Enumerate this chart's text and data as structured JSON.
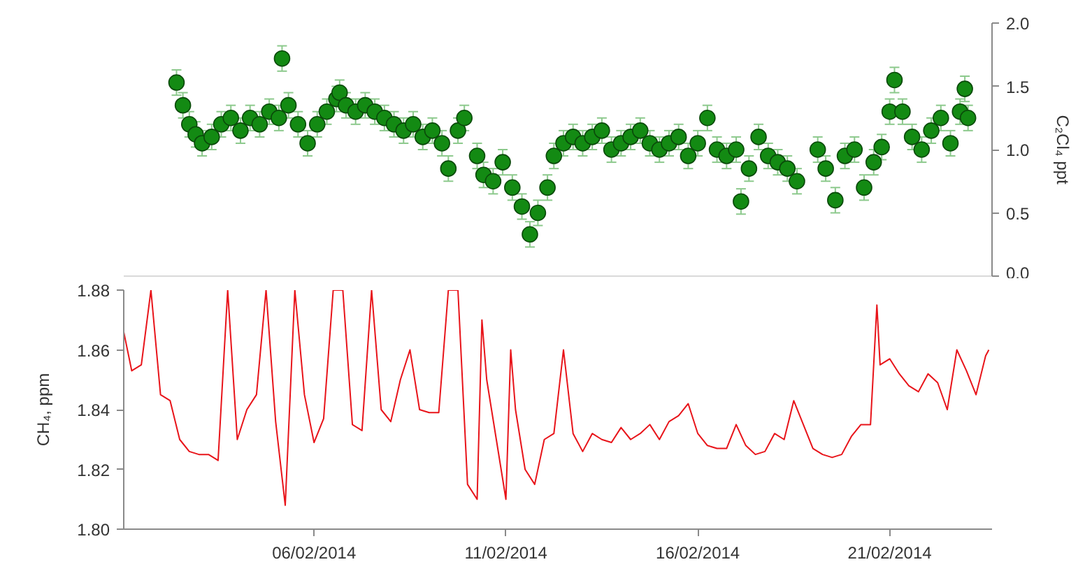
{
  "chart_data": [
    {
      "type": "scatter",
      "y2label": "C₂Cl₄ ppt",
      "marker": "circle",
      "grid": false,
      "tick_labels": "y",
      "xlim": [
        "2014-02-01T01:00",
        "2014-02-23T16:00"
      ],
      "y2lim": [
        0,
        2
      ],
      "y2ticks": [
        {
          "value": 0,
          "label": "0.0"
        },
        {
          "value": 0.5,
          "label": "0.5"
        },
        {
          "value": 1,
          "label": "1.0"
        },
        {
          "value": 1.5,
          "label": "1.5"
        },
        {
          "value": 2,
          "label": "2.0"
        }
      ],
      "x": [
        "2014-02-02T10:00",
        "2014-02-02T14:00",
        "2014-02-02T18:00",
        "2014-02-02T22:00",
        "2014-02-03T02:00",
        "2014-02-03T08:00",
        "2014-02-03T14:00",
        "2014-02-03T20:00",
        "2014-02-04T02:00",
        "2014-02-04T08:00",
        "2014-02-04T14:00",
        "2014-02-04T20:00",
        "2014-02-05T02:00",
        "2014-02-05T04:00",
        "2014-02-05T08:00",
        "2014-02-05T14:00",
        "2014-02-05T20:00",
        "2014-02-06T02:00",
        "2014-02-06T08:00",
        "2014-02-06T14:00",
        "2014-02-06T16:00",
        "2014-02-06T20:00",
        "2014-02-07T02:00",
        "2014-02-07T08:00",
        "2014-02-07T14:00",
        "2014-02-07T20:00",
        "2014-02-08T02:00",
        "2014-02-08T08:00",
        "2014-02-08T14:00",
        "2014-02-08T20:00",
        "2014-02-09T02:00",
        "2014-02-09T08:00",
        "2014-02-09T12:00",
        "2014-02-09T18:00",
        "2014-02-09T22:00",
        "2014-02-10T06:00",
        "2014-02-10T10:00",
        "2014-02-10T16:00",
        "2014-02-10T22:00",
        "2014-02-11T04:00",
        "2014-02-11T10:00",
        "2014-02-11T15:00",
        "2014-02-11T20:00",
        "2014-02-12T02:00",
        "2014-02-12T06:00",
        "2014-02-12T12:00",
        "2014-02-12T18:00",
        "2014-02-13T00:00",
        "2014-02-13T06:00",
        "2014-02-13T12:00",
        "2014-02-13T18:00",
        "2014-02-14T00:00",
        "2014-02-14T06:00",
        "2014-02-14T12:00",
        "2014-02-14T18:00",
        "2014-02-15T00:00",
        "2014-02-15T06:00",
        "2014-02-15T12:00",
        "2014-02-15T18:00",
        "2014-02-16T00:00",
        "2014-02-16T06:00",
        "2014-02-16T12:00",
        "2014-02-16T18:00",
        "2014-02-17T00:00",
        "2014-02-17T03:00",
        "2014-02-17T08:00",
        "2014-02-17T14:00",
        "2014-02-17T20:00",
        "2014-02-18T02:00",
        "2014-02-18T08:00",
        "2014-02-18T14:00",
        "2014-02-19T03:00",
        "2014-02-19T08:00",
        "2014-02-19T14:00",
        "2014-02-19T20:00",
        "2014-02-20T02:00",
        "2014-02-20T08:00",
        "2014-02-20T14:00",
        "2014-02-20T19:00",
        "2014-02-21T00:00",
        "2014-02-21T03:00",
        "2014-02-21T08:00",
        "2014-02-21T14:00",
        "2014-02-21T20:00",
        "2014-02-22T02:00",
        "2014-02-22T08:00",
        "2014-02-22T14:00",
        "2014-02-22T20:00",
        "2014-02-22T23:00",
        "2014-02-23T01:00"
      ],
      "series": [
        {
          "color": "#138a13",
          "axis": "y2",
          "values": [
            1.53,
            1.35,
            1.2,
            1.12,
            1.05,
            1.1,
            1.2,
            1.25,
            1.15,
            1.25,
            1.2,
            1.3,
            1.25,
            1.72,
            1.35,
            1.2,
            1.05,
            1.2,
            1.3,
            1.4,
            1.45,
            1.35,
            1.3,
            1.35,
            1.3,
            1.25,
            1.2,
            1.15,
            1.2,
            1.1,
            1.15,
            1.05,
            0.85,
            1.15,
            1.25,
            0.95,
            0.8,
            0.75,
            0.9,
            0.7,
            0.55,
            0.33,
            0.5,
            0.7,
            0.95,
            1.05,
            1.1,
            1.05,
            1.1,
            1.15,
            1.0,
            1.05,
            1.1,
            1.15,
            1.05,
            1.0,
            1.05,
            1.1,
            0.95,
            1.05,
            1.25,
            1.0,
            0.95,
            1.0,
            0.59,
            0.85,
            1.1,
            0.95,
            0.9,
            0.85,
            0.75,
            1.0,
            0.85,
            0.6,
            0.95,
            1.0,
            0.7,
            0.9,
            1.02,
            1.3,
            1.55,
            1.3,
            1.1,
            1.0,
            1.15,
            1.25,
            1.05,
            1.3,
            1.48,
            1.25
          ],
          "errors": [
            0.1,
            0.1,
            0.1,
            0.1,
            0.1,
            0.1,
            0.1,
            0.1,
            0.1,
            0.1,
            0.1,
            0.1,
            0.1,
            0.1,
            0.1,
            0.1,
            0.1,
            0.1,
            0.1,
            0.1,
            0.1,
            0.1,
            0.1,
            0.1,
            0.1,
            0.1,
            0.1,
            0.1,
            0.1,
            0.1,
            0.1,
            0.1,
            0.1,
            0.1,
            0.1,
            0.1,
            0.1,
            0.1,
            0.1,
            0.1,
            0.1,
            0.1,
            0.1,
            0.1,
            0.1,
            0.1,
            0.1,
            0.1,
            0.1,
            0.1,
            0.1,
            0.1,
            0.1,
            0.1,
            0.1,
            0.1,
            0.1,
            0.1,
            0.1,
            0.1,
            0.1,
            0.1,
            0.1,
            0.1,
            0.1,
            0.1,
            0.1,
            0.1,
            0.1,
            0.1,
            0.1,
            0.1,
            0.1,
            0.1,
            0.1,
            0.1,
            0.1,
            0.1,
            0.1,
            0.1,
            0.1,
            0.1,
            0.1,
            0.1,
            0.1,
            0.1,
            0.1,
            0.1,
            0.1,
            0.1
          ]
        }
      ]
    },
    {
      "type": "line",
      "ylabel": "CH₄, ppm",
      "grid": false,
      "line_style": "solid",
      "xlim": [
        "2014-02-01T01:00",
        "2014-02-23T16:00"
      ],
      "xticks": [
        {
          "value": "2014-02-06",
          "label": "06/02/2014"
        },
        {
          "value": "2014-02-11",
          "label": "11/02/2014"
        },
        {
          "value": "2014-02-16",
          "label": "16/02/2014"
        },
        {
          "value": "2014-02-21",
          "label": "21/02/2014"
        }
      ],
      "ylim": [
        1.8,
        1.88
      ],
      "yticks": [
        {
          "value": 1.8,
          "label": "1.80"
        },
        {
          "value": 1.82,
          "label": "1.82"
        },
        {
          "value": 1.84,
          "label": "1.84"
        },
        {
          "value": 1.86,
          "label": "1.86"
        },
        {
          "value": 1.88,
          "label": "1.88"
        }
      ],
      "x": [
        "2014-02-01T01:00",
        "2014-02-01T06:00",
        "2014-02-01T12:00",
        "2014-02-01T18:00",
        "2014-02-02T00:00",
        "2014-02-02T06:00",
        "2014-02-02T12:00",
        "2014-02-02T18:00",
        "2014-02-03T00:00",
        "2014-02-03T06:00",
        "2014-02-03T12:00",
        "2014-02-03T18:00",
        "2014-02-04T00:00",
        "2014-02-04T06:00",
        "2014-02-04T12:00",
        "2014-02-04T18:00",
        "2014-02-05T00:00",
        "2014-02-05T06:00",
        "2014-02-05T12:00",
        "2014-02-05T18:00",
        "2014-02-06T00:00",
        "2014-02-06T06:00",
        "2014-02-06T12:00",
        "2014-02-06T18:00",
        "2014-02-07T00:00",
        "2014-02-07T06:00",
        "2014-02-07T12:00",
        "2014-02-07T18:00",
        "2014-02-08T00:00",
        "2014-02-08T06:00",
        "2014-02-08T12:00",
        "2014-02-08T18:00",
        "2014-02-09T00:00",
        "2014-02-09T06:00",
        "2014-02-09T12:00",
        "2014-02-09T18:00",
        "2014-02-10T00:00",
        "2014-02-10T06:00",
        "2014-02-10T09:00",
        "2014-02-10T12:00",
        "2014-02-10T18:00",
        "2014-02-11T00:00",
        "2014-02-11T03:00",
        "2014-02-11T06:00",
        "2014-02-11T12:00",
        "2014-02-11T18:00",
        "2014-02-12T00:00",
        "2014-02-12T06:00",
        "2014-02-12T12:00",
        "2014-02-12T18:00",
        "2014-02-13T00:00",
        "2014-02-13T06:00",
        "2014-02-13T12:00",
        "2014-02-13T18:00",
        "2014-02-14T00:00",
        "2014-02-14T06:00",
        "2014-02-14T12:00",
        "2014-02-14T18:00",
        "2014-02-15T00:00",
        "2014-02-15T06:00",
        "2014-02-15T12:00",
        "2014-02-15T18:00",
        "2014-02-16T00:00",
        "2014-02-16T06:00",
        "2014-02-16T12:00",
        "2014-02-16T18:00",
        "2014-02-17T00:00",
        "2014-02-17T06:00",
        "2014-02-17T12:00",
        "2014-02-17T18:00",
        "2014-02-18T00:00",
        "2014-02-18T06:00",
        "2014-02-18T12:00",
        "2014-02-18T18:00",
        "2014-02-19T00:00",
        "2014-02-19T06:00",
        "2014-02-19T12:00",
        "2014-02-19T18:00",
        "2014-02-20T00:00",
        "2014-02-20T06:00",
        "2014-02-20T12:00",
        "2014-02-20T16:00",
        "2014-02-20T18:00",
        "2014-02-21T00:00",
        "2014-02-21T06:00",
        "2014-02-21T12:00",
        "2014-02-21T18:00",
        "2014-02-22T00:00",
        "2014-02-22T06:00",
        "2014-02-22T12:00",
        "2014-02-22T18:00",
        "2014-02-23T00:00",
        "2014-02-23T06:00",
        "2014-02-23T12:00",
        "2014-02-23T14:00"
      ],
      "series": [
        {
          "color": "#e8141a",
          "values": [
            1.866,
            1.853,
            1.855,
            1.88,
            1.845,
            1.843,
            1.83,
            1.826,
            1.825,
            1.825,
            1.823,
            1.88,
            1.83,
            1.84,
            1.845,
            1.88,
            1.836,
            1.808,
            1.88,
            1.845,
            1.829,
            1.837,
            1.88,
            1.88,
            1.835,
            1.833,
            1.88,
            1.84,
            1.836,
            1.85,
            1.86,
            1.84,
            1.839,
            1.839,
            1.88,
            1.88,
            1.815,
            1.81,
            1.87,
            1.85,
            1.83,
            1.81,
            1.86,
            1.84,
            1.82,
            1.815,
            1.83,
            1.832,
            1.86,
            1.832,
            1.826,
            1.832,
            1.83,
            1.829,
            1.834,
            1.83,
            1.832,
            1.835,
            1.83,
            1.836,
            1.838,
            1.842,
            1.832,
            1.828,
            1.827,
            1.827,
            1.835,
            1.828,
            1.825,
            1.826,
            1.832,
            1.83,
            1.843,
            1.835,
            1.827,
            1.825,
            1.824,
            1.825,
            1.831,
            1.835,
            1.835,
            1.875,
            1.855,
            1.857,
            1.852,
            1.848,
            1.846,
            1.852,
            1.849,
            1.84,
            1.86,
            1.853,
            1.845,
            1.858,
            1.86
          ]
        }
      ]
    }
  ]
}
